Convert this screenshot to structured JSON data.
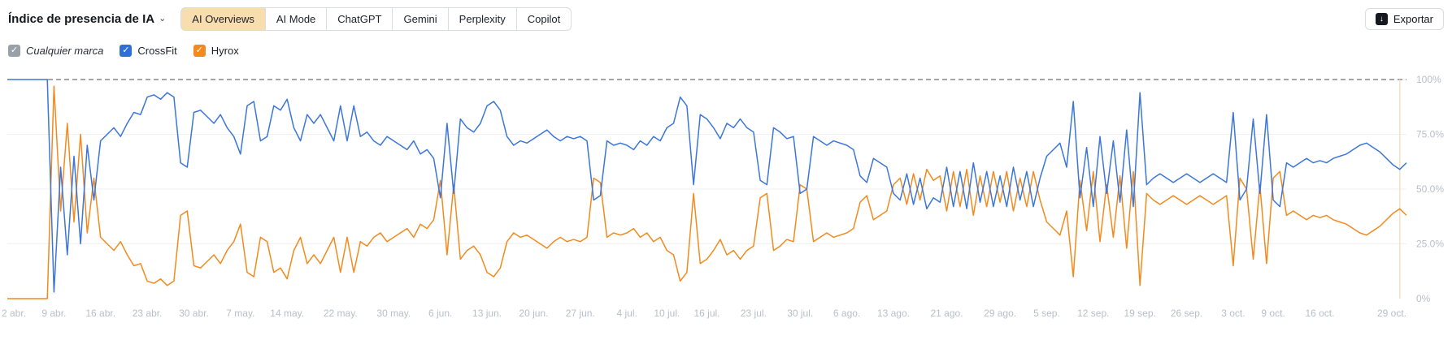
{
  "header": {
    "title": "Índice de presencia de IA",
    "tabs": [
      {
        "label": "AI Overviews",
        "active": true
      },
      {
        "label": "AI Mode",
        "active": false
      },
      {
        "label": "ChatGPT",
        "active": false
      },
      {
        "label": "Gemini",
        "active": false
      },
      {
        "label": "Perplexity",
        "active": false
      },
      {
        "label": "Copilot",
        "active": false
      }
    ],
    "active_tab_bg": "#f8ddae",
    "export_label": "Exportar"
  },
  "legend": {
    "items": [
      {
        "label": "Cualquier marca",
        "color": "#9aa0a8",
        "checked": true,
        "italic": true
      },
      {
        "label": "CrossFit",
        "color": "#2f6fd6",
        "checked": true
      },
      {
        "label": "Hyrox",
        "color": "#f28a1e",
        "checked": true
      }
    ]
  },
  "chart_data": {
    "type": "line",
    "title": "Índice de presencia de IA — AI Overviews",
    "xlabel": "",
    "ylabel": "",
    "ylim": [
      0,
      100
    ],
    "grid": true,
    "legend_position": "top-left",
    "y_axis_side": "right",
    "y_ticks": [
      "100%",
      "75.0%",
      "50.0%",
      "25.0%",
      "0%"
    ],
    "y_tick_values": [
      100,
      75,
      50,
      25,
      0
    ],
    "x_unit": "days_since_apr_2",
    "x_range": [
      0,
      210
    ],
    "reference_line": {
      "value": 100,
      "style": "dashed",
      "color": "#4d4d4d"
    },
    "current_marker": {
      "d": 209,
      "color": "#f5dfc4"
    },
    "x_ticks": [
      {
        "label": "2 abr.",
        "d": 0
      },
      {
        "label": "9 abr.",
        "d": 7
      },
      {
        "label": "16 abr.",
        "d": 14
      },
      {
        "label": "23 abr.",
        "d": 21
      },
      {
        "label": "30 abr.",
        "d": 28
      },
      {
        "label": "7 may.",
        "d": 35
      },
      {
        "label": "14 may.",
        "d": 42
      },
      {
        "label": "22 may.",
        "d": 50
      },
      {
        "label": "30 may.",
        "d": 58
      },
      {
        "label": "6 jun.",
        "d": 65
      },
      {
        "label": "13 jun.",
        "d": 72
      },
      {
        "label": "20 jun.",
        "d": 79
      },
      {
        "label": "27 jun.",
        "d": 86
      },
      {
        "label": "4 jul.",
        "d": 93
      },
      {
        "label": "10 jul.",
        "d": 99
      },
      {
        "label": "16 jul.",
        "d": 105
      },
      {
        "label": "23 jul.",
        "d": 112
      },
      {
        "label": "30 jul.",
        "d": 119
      },
      {
        "label": "6 ago.",
        "d": 126
      },
      {
        "label": "13 ago.",
        "d": 133
      },
      {
        "label": "21 ago.",
        "d": 141
      },
      {
        "label": "29 ago.",
        "d": 149
      },
      {
        "label": "5 sep.",
        "d": 156
      },
      {
        "label": "12 sep.",
        "d": 163
      },
      {
        "label": "19 sep.",
        "d": 170
      },
      {
        "label": "26 sep.",
        "d": 177
      },
      {
        "label": "3 oct.",
        "d": 184
      },
      {
        "label": "9 oct.",
        "d": 190
      },
      {
        "label": "16 oct.",
        "d": 197
      },
      {
        "label": "29 oct.",
        "d": 210
      }
    ],
    "series": [
      {
        "name": "CrossFit",
        "color": "#3b76d8",
        "values": [
          100,
          100,
          100,
          100,
          100,
          100,
          100,
          3,
          60,
          20,
          65,
          25,
          70,
          45,
          72,
          75,
          78,
          74,
          80,
          85,
          84,
          92,
          93,
          91,
          94,
          92,
          62,
          60,
          85,
          86,
          83,
          80,
          84,
          78,
          74,
          66,
          88,
          90,
          72,
          74,
          88,
          86,
          91,
          78,
          72,
          84,
          80,
          84,
          78,
          72,
          88,
          72,
          88,
          74,
          76,
          72,
          70,
          74,
          72,
          70,
          68,
          72,
          66,
          68,
          64,
          46,
          80,
          48,
          82,
          78,
          76,
          80,
          88,
          90,
          86,
          74,
          70,
          72,
          71,
          73,
          75,
          77,
          74,
          72,
          74,
          73,
          74,
          72,
          45,
          47,
          72,
          70,
          71,
          70,
          68,
          72,
          70,
          74,
          72,
          78,
          80,
          92,
          88,
          52,
          84,
          82,
          78,
          73,
          80,
          78,
          82,
          78,
          76,
          54,
          52,
          78,
          76,
          73,
          74,
          48,
          50,
          74,
          72,
          70,
          72,
          71,
          70,
          68,
          56,
          53,
          64,
          62,
          60,
          48,
          45,
          57,
          43,
          55,
          41,
          46,
          44,
          60,
          42,
          58,
          41,
          62,
          44,
          58,
          42,
          56,
          42,
          60,
          45,
          58,
          42,
          55,
          65,
          68,
          71,
          60,
          90,
          46,
          69,
          42,
          74,
          48,
          72,
          44,
          77,
          42,
          94,
          52,
          55,
          57,
          55,
          53,
          55,
          57,
          55,
          53,
          55,
          57,
          55,
          53,
          85,
          45,
          50,
          82,
          48,
          84,
          45,
          42,
          62,
          60,
          62,
          64,
          62,
          63,
          62,
          64,
          65,
          66,
          68,
          70,
          71,
          69,
          67,
          64,
          61,
          59,
          62
        ]
      },
      {
        "name": "Hyrox",
        "color": "#f28a1e",
        "values": [
          0,
          0,
          0,
          0,
          0,
          0,
          0,
          97,
          40,
          80,
          35,
          75,
          30,
          55,
          28,
          25,
          22,
          26,
          20,
          15,
          16,
          8,
          7,
          9,
          6,
          8,
          38,
          40,
          15,
          14,
          17,
          20,
          16,
          22,
          26,
          34,
          12,
          10,
          28,
          26,
          12,
          14,
          9,
          22,
          28,
          16,
          20,
          16,
          22,
          28,
          12,
          28,
          12,
          26,
          24,
          28,
          30,
          26,
          28,
          30,
          32,
          28,
          34,
          32,
          36,
          54,
          20,
          52,
          18,
          22,
          24,
          20,
          12,
          10,
          14,
          26,
          30,
          28,
          29,
          27,
          25,
          23,
          26,
          28,
          26,
          27,
          26,
          28,
          55,
          53,
          28,
          30,
          29,
          30,
          32,
          28,
          30,
          26,
          28,
          22,
          20,
          8,
          12,
          48,
          16,
          18,
          22,
          27,
          20,
          22,
          18,
          22,
          24,
          46,
          48,
          22,
          24,
          27,
          26,
          52,
          50,
          26,
          28,
          30,
          28,
          29,
          30,
          32,
          44,
          47,
          36,
          38,
          40,
          52,
          55,
          43,
          57,
          45,
          59,
          54,
          56,
          40,
          58,
          42,
          59,
          38,
          56,
          42,
          58,
          44,
          58,
          40,
          55,
          42,
          58,
          45,
          35,
          32,
          29,
          40,
          10,
          54,
          31,
          58,
          26,
          52,
          28,
          56,
          23,
          58,
          6,
          48,
          45,
          43,
          45,
          47,
          45,
          43,
          45,
          47,
          45,
          43,
          45,
          47,
          15,
          55,
          50,
          18,
          52,
          16,
          55,
          58,
          38,
          40,
          38,
          36,
          38,
          37,
          38,
          36,
          35,
          34,
          32,
          30,
          29,
          31,
          33,
          36,
          39,
          41,
          38
        ]
      }
    ]
  }
}
